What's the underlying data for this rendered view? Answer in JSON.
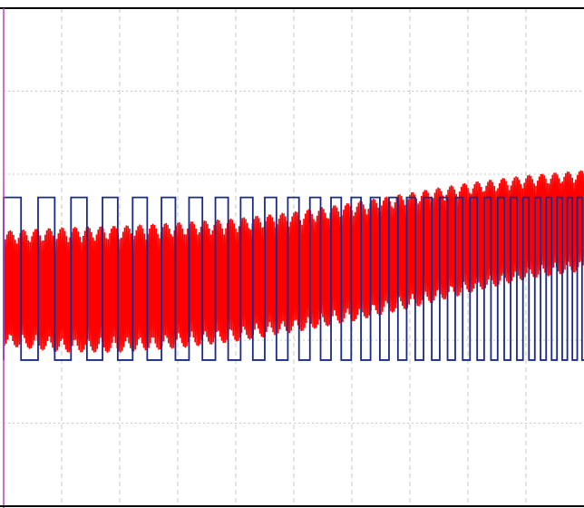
{
  "chart_data": {
    "type": "line",
    "title": "",
    "xlabel": "",
    "ylabel": "",
    "grid": true,
    "xlim": [
      0,
      10
    ],
    "ylim": [
      0,
      6
    ],
    "series": [
      {
        "color": "#ff0000",
        "style": "dense oscillating waveform",
        "envelope_upper": [
          {
            "x": 0,
            "y": 3.32
          },
          {
            "x": 1,
            "y": 3.36
          },
          {
            "x": 2,
            "y": 3.38
          },
          {
            "x": 3,
            "y": 3.42
          },
          {
            "x": 4,
            "y": 3.47
          },
          {
            "x": 5,
            "y": 3.55
          },
          {
            "x": 6,
            "y": 3.66
          },
          {
            "x": 7,
            "y": 3.78
          },
          {
            "x": 8,
            "y": 3.9
          },
          {
            "x": 9,
            "y": 3.99
          },
          {
            "x": 10,
            "y": 4.05
          }
        ],
        "envelope_lower": [
          {
            "x": 0,
            "y": 1.93
          },
          {
            "x": 1,
            "y": 1.85
          },
          {
            "x": 2,
            "y": 1.85
          },
          {
            "x": 3,
            "y": 1.9
          },
          {
            "x": 4,
            "y": 1.98
          },
          {
            "x": 5,
            "y": 2.09
          },
          {
            "x": 6,
            "y": 2.22
          },
          {
            "x": 7,
            "y": 2.38
          },
          {
            "x": 8,
            "y": 2.56
          },
          {
            "x": 9,
            "y": 2.73
          },
          {
            "x": 10,
            "y": 2.83
          }
        ]
      },
      {
        "color": "#1a2a8a",
        "style": "square wave",
        "high": 3.72,
        "low": 1.76,
        "start_period": 0.6,
        "end_period": 0.16
      }
    ]
  }
}
